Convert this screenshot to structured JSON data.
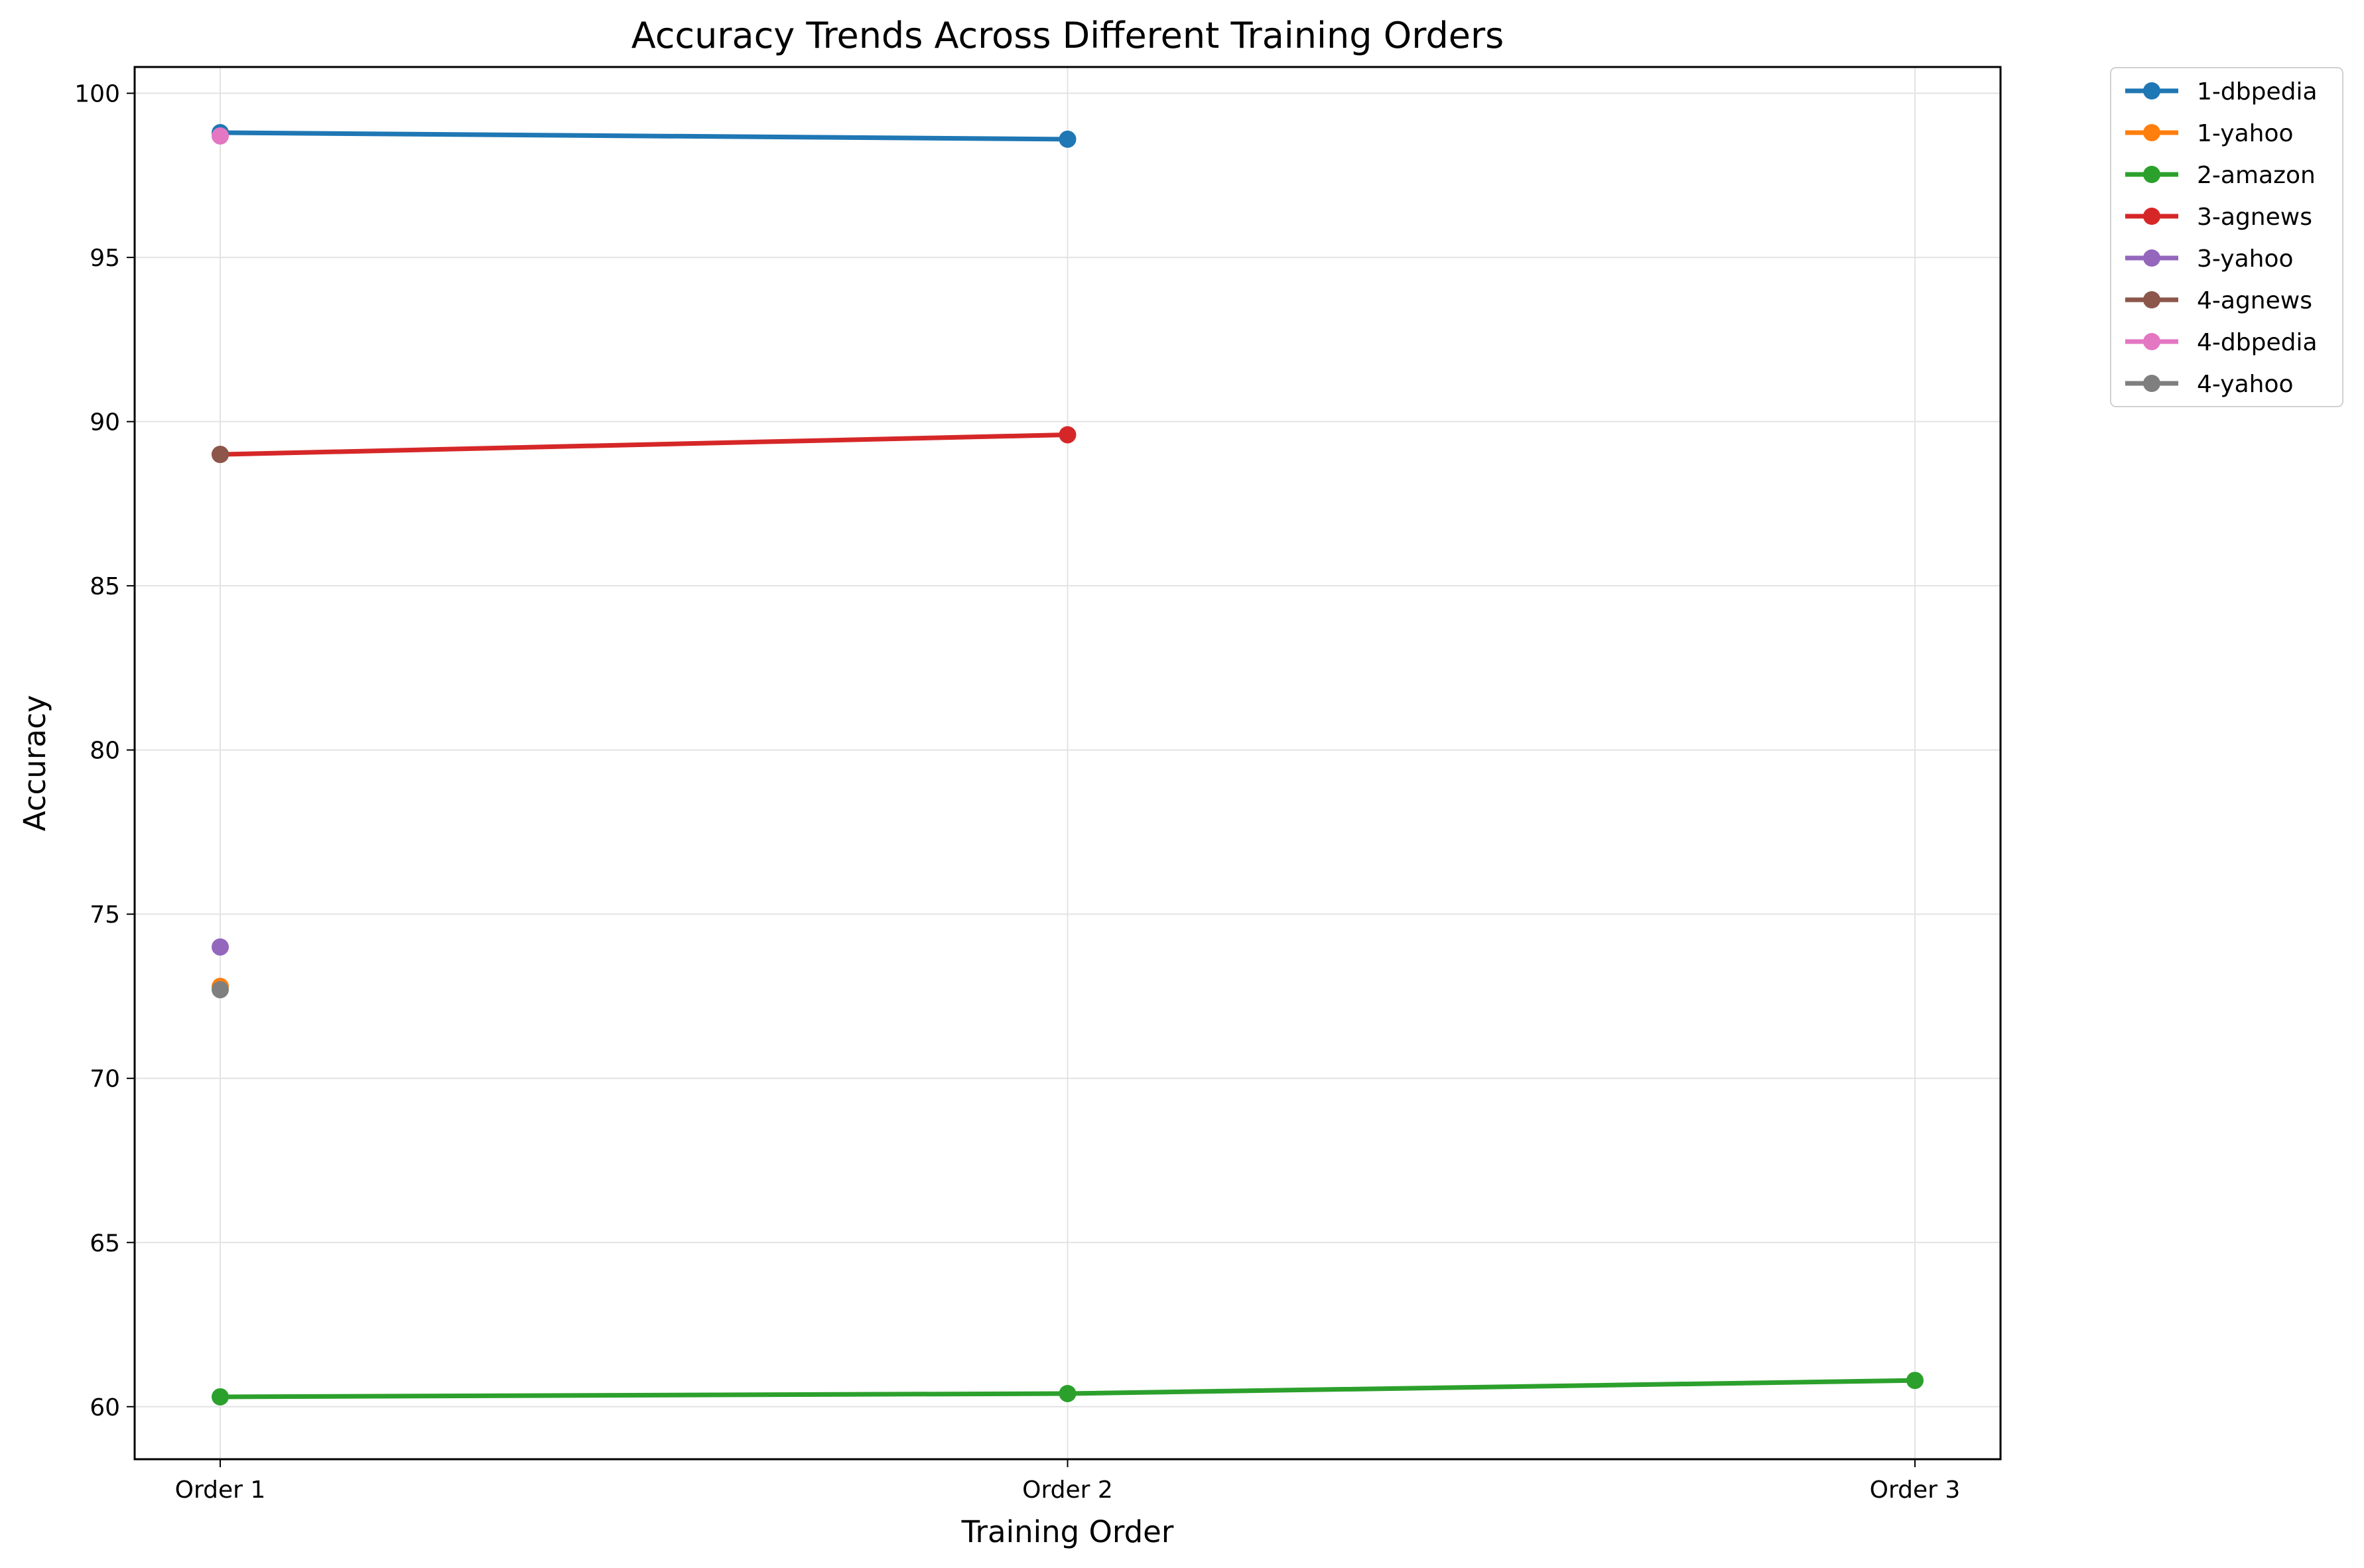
{
  "chart_data": {
    "type": "line",
    "title": "Accuracy Trends Across Different Training Orders",
    "xlabel": "Training Order",
    "ylabel": "Accuracy",
    "categories": [
      "Order 1",
      "Order 2",
      "Order 3"
    ],
    "ylim": [
      58.4,
      100.8
    ],
    "yticks": [
      "60",
      "65",
      "70",
      "75",
      "80",
      "85",
      "90",
      "95",
      "100"
    ],
    "grid": true,
    "legend_position": "outside top-right",
    "series": [
      {
        "name": "1-dbpedia",
        "color": "#1f77b4",
        "values": [
          98.8,
          98.6,
          null
        ]
      },
      {
        "name": "1-yahoo",
        "color": "#ff7f0e",
        "values": [
          72.8,
          null,
          null
        ]
      },
      {
        "name": "2-amazon",
        "color": "#2ca02c",
        "values": [
          60.3,
          60.4,
          60.8
        ]
      },
      {
        "name": "3-agnews",
        "color": "#d62728",
        "values": [
          89.0,
          89.6,
          null
        ]
      },
      {
        "name": "3-yahoo",
        "color": "#9467bd",
        "values": [
          74.0,
          null,
          null
        ]
      },
      {
        "name": "4-agnews",
        "color": "#8c564b",
        "values": [
          89.0,
          null,
          null
        ]
      },
      {
        "name": "4-dbpedia",
        "color": "#e377c2",
        "values": [
          98.7,
          null,
          null
        ]
      },
      {
        "name": "4-yahoo",
        "color": "#7f7f7f",
        "values": [
          72.7,
          null,
          null
        ]
      }
    ]
  }
}
